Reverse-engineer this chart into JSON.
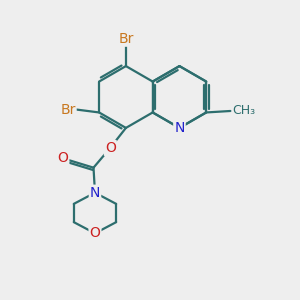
{
  "bg_color": "#eeeeee",
  "bond_color": "#2d6e6e",
  "bond_width": 1.6,
  "atom_colors": {
    "Br": "#c87820",
    "N": "#2222cc",
    "O": "#cc2222",
    "C": "#2d6e6e"
  },
  "font_size_atom": 10,
  "font_size_me": 9
}
